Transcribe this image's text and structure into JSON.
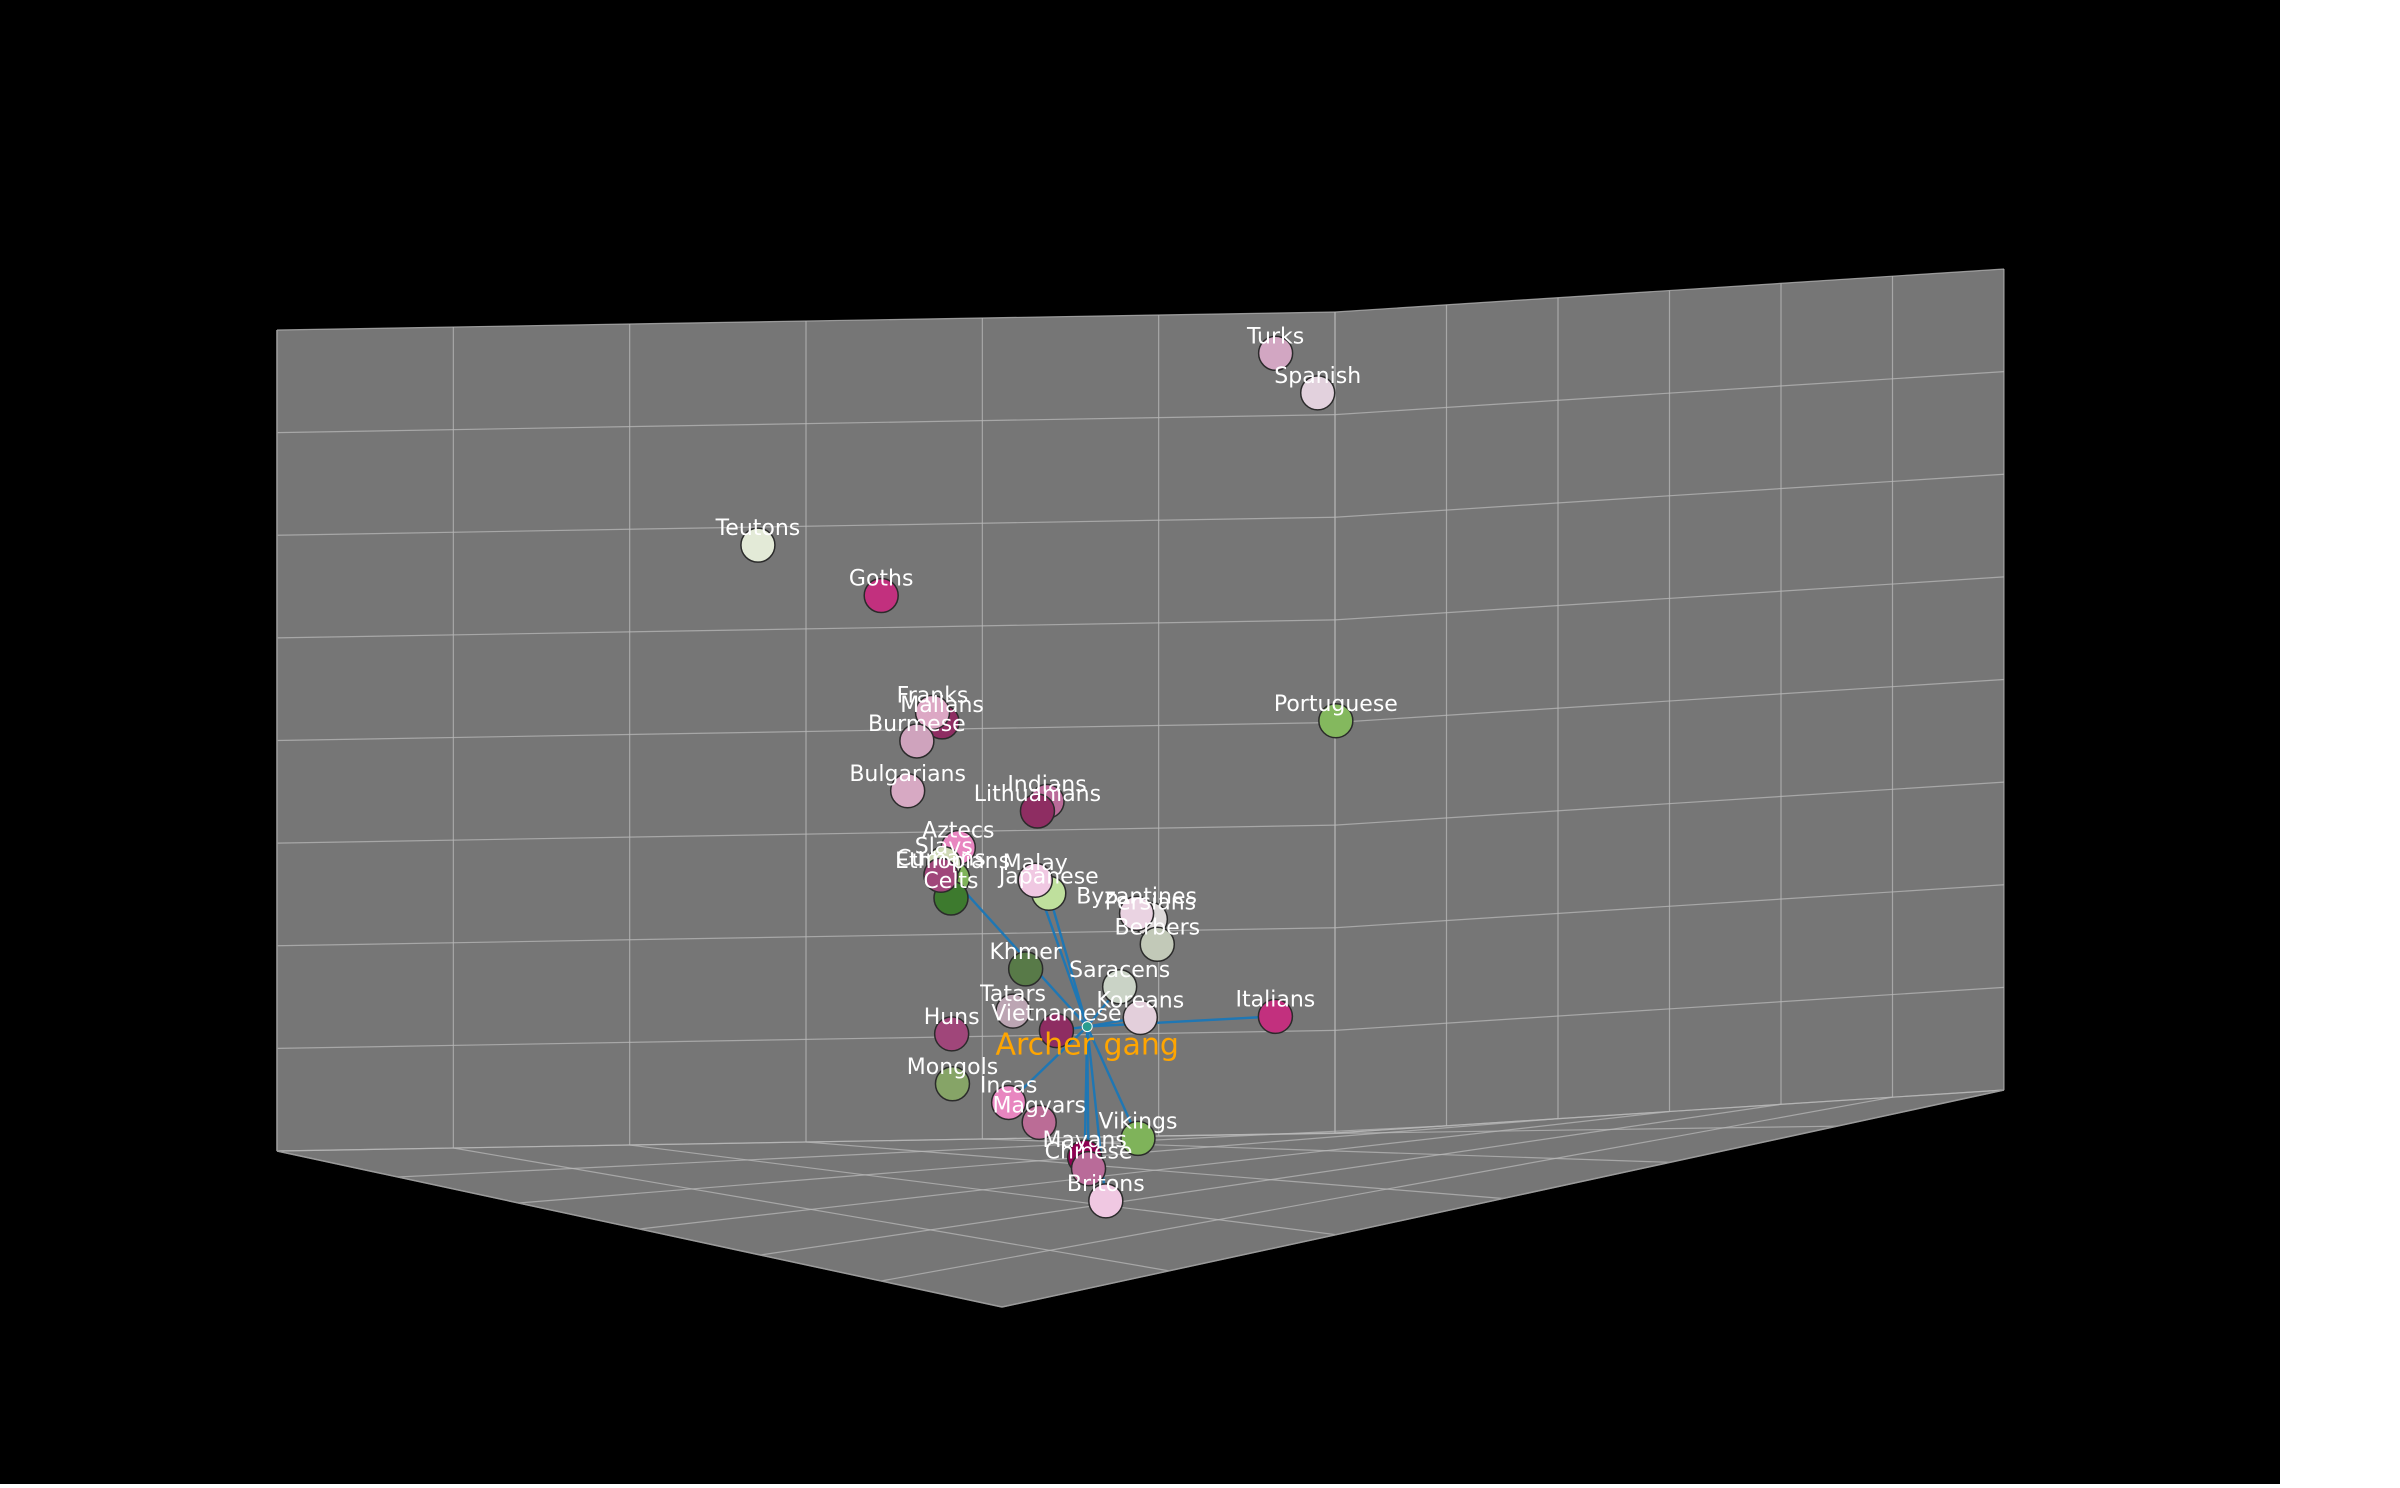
{
  "chart_data": {
    "type": "scatter",
    "projection": "3d",
    "title": "",
    "xlabel": "",
    "ylabel": "",
    "zlabel": "",
    "grid": true,
    "tick_labels_visible": false,
    "colors": {
      "background": "#000000",
      "pane": "#767676",
      "grid": "#b8b8b8",
      "label": "#ffffff",
      "highlight_label": "#ffa500",
      "link": "#1f77b4"
    },
    "highlight": {
      "label": "Archer gang",
      "marker_color": "#2a9d8f"
    },
    "points": [
      {
        "name": "Teutons",
        "x": 0.55,
        "y": 0.92,
        "z": 0.83,
        "color": "#e3ead7"
      },
      {
        "name": "Goths",
        "x": 0.55,
        "y": 0.8,
        "z": 0.75,
        "color": "#c2307e"
      },
      {
        "name": "Turks",
        "x": 0.1,
        "y": 0.12,
        "z": 0.95,
        "color": "#d2a6c2"
      },
      {
        "name": "Spanish",
        "x": 0.1,
        "y": 0.08,
        "z": 0.9,
        "color": "#e2d1dd"
      },
      {
        "name": "Franks",
        "x": 0.55,
        "y": 0.75,
        "z": 0.6,
        "color": "#dca7c4"
      },
      {
        "name": "Malians",
        "x": 0.52,
        "y": 0.72,
        "z": 0.58,
        "color": "#8e2d62"
      },
      {
        "name": "Burmese",
        "x": 0.6,
        "y": 0.8,
        "z": 0.58,
        "color": "#cfa3bd"
      },
      {
        "name": "Bulgarians",
        "x": 0.8,
        "y": 0.95,
        "z": 0.58,
        "color": "#d7a9c3"
      },
      {
        "name": "Slavs",
        "x": 0.85,
        "y": 0.95,
        "z": 0.5,
        "color": "#ced9b5"
      },
      {
        "name": "Cumans",
        "x": 0.86,
        "y": 0.96,
        "z": 0.49,
        "color": "#a0467a"
      },
      {
        "name": "Celts",
        "x": 0.86,
        "y": 0.95,
        "z": 0.46,
        "color": "#3d7a2e"
      },
      {
        "name": "Aztecs",
        "x": 0.8,
        "y": 0.9,
        "z": 0.5,
        "color": "#e886c0"
      },
      {
        "name": "Indians",
        "x": 0.42,
        "y": 0.55,
        "z": 0.45,
        "color": "#b96b99"
      },
      {
        "name": "Lithuanians",
        "x": 0.48,
        "y": 0.6,
        "z": 0.45,
        "color": "#8e2d62"
      },
      {
        "name": "Ethiopians",
        "x": 0.65,
        "y": 0.8,
        "z": 0.42,
        "color": "#7fb35a"
      },
      {
        "name": "Malay",
        "x": 0.55,
        "y": 0.65,
        "z": 0.38,
        "color": "#f0c8e2"
      },
      {
        "name": "Japanese",
        "x": 0.54,
        "y": 0.63,
        "z": 0.36,
        "color": "#bfe09d"
      },
      {
        "name": "Portuguese",
        "x": 0.08,
        "y": 0.05,
        "z": 0.5,
        "color": "#84b85e"
      },
      {
        "name": "Byzantines",
        "x": 0.4,
        "y": 0.45,
        "z": 0.3,
        "color": "#ead3e2"
      },
      {
        "name": "Persians",
        "x": 0.39,
        "y": 0.43,
        "z": 0.29,
        "color": "#ddd9d9"
      },
      {
        "name": "Khmer",
        "x": 0.58,
        "y": 0.68,
        "z": 0.28,
        "color": "#587a48"
      },
      {
        "name": "Berbers",
        "x": 0.4,
        "y": 0.43,
        "z": 0.26,
        "color": "#c2c9b8"
      },
      {
        "name": "Huns",
        "x": 0.72,
        "y": 0.85,
        "z": 0.25,
        "color": "#a0467a"
      },
      {
        "name": "Tatars",
        "x": 0.62,
        "y": 0.72,
        "z": 0.24,
        "color": "#bca5b3"
      },
      {
        "name": "Mongols",
        "x": 0.82,
        "y": 0.92,
        "z": 0.22,
        "color": "#86a467"
      },
      {
        "name": "Saracens",
        "x": 0.45,
        "y": 0.5,
        "z": 0.22,
        "color": "#cad3c6"
      },
      {
        "name": "Vietnamese",
        "x": 0.58,
        "y": 0.65,
        "z": 0.2,
        "color": "#8e2d62"
      },
      {
        "name": "Koreans",
        "x": 0.45,
        "y": 0.48,
        "z": 0.18,
        "color": "#e3cfdb"
      },
      {
        "name": "Italians",
        "x": 0.3,
        "y": 0.25,
        "z": 0.15,
        "color": "#c2307e"
      },
      {
        "name": "Incas",
        "x": 0.7,
        "y": 0.78,
        "z": 0.15,
        "color": "#e886c0"
      },
      {
        "name": "Magyars",
        "x": 0.7,
        "y": 0.75,
        "z": 0.12,
        "color": "#bb6c96"
      },
      {
        "name": "Vikings",
        "x": 0.55,
        "y": 0.55,
        "z": 0.05,
        "color": "#7fb35a"
      },
      {
        "name": "Mayans",
        "x": 0.62,
        "y": 0.65,
        "z": 0.05,
        "color": "#8e0152"
      },
      {
        "name": "Chinese",
        "x": 0.64,
        "y": 0.66,
        "z": 0.04,
        "color": "#b96b99"
      },
      {
        "name": "Britons",
        "x": 0.65,
        "y": 0.65,
        "z": 0.0,
        "color": "#f0c8e2"
      }
    ],
    "links_from_highlight": [
      "Ethiopians",
      "Malay",
      "Japanese",
      "Vietnamese",
      "Saracens",
      "Koreans",
      "Italians",
      "Incas",
      "Vikings",
      "Mayans",
      "Chinese",
      "Britons"
    ]
  }
}
